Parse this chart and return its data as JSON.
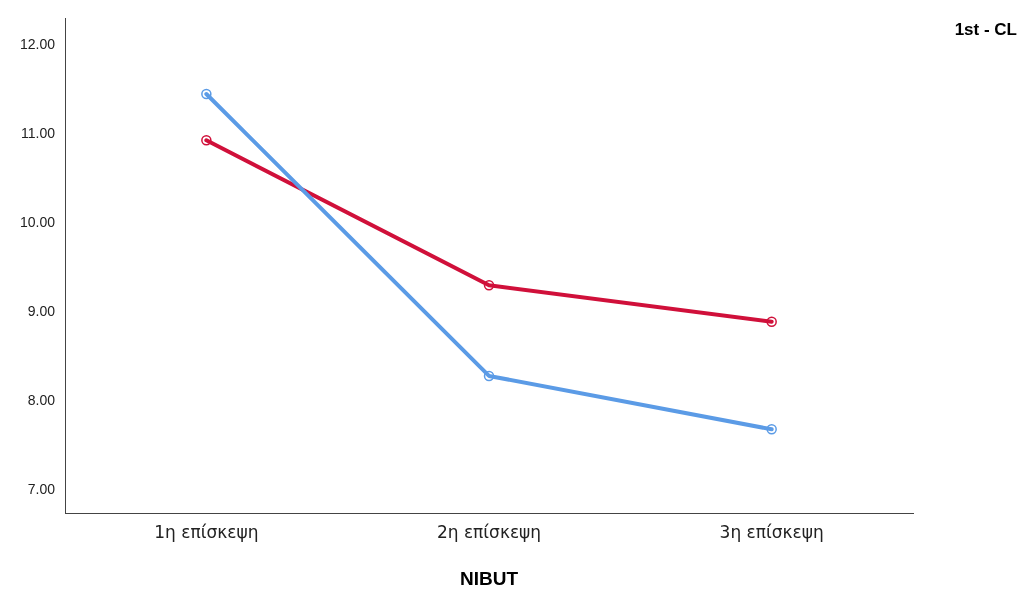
{
  "chart_data": {
    "type": "line",
    "xlabel": "NIBUT",
    "legend_title": "1st - CL",
    "marker": "circle",
    "line_style": "solid",
    "grid": false,
    "categories": [
      "1η επίσκεψη",
      "2η επίσκεψη",
      "3η επίσκεψη"
    ],
    "ylim": [
      6.73,
      12.3
    ],
    "yticks": [
      {
        "value": 7,
        "label": "7.00"
      },
      {
        "value": 8,
        "label": "8.00"
      },
      {
        "value": 9,
        "label": "9.00"
      },
      {
        "value": 10,
        "label": "10.00"
      },
      {
        "value": 11,
        "label": "11.00"
      },
      {
        "value": 12,
        "label": "12.00"
      }
    ],
    "series": [
      {
        "color": "#5b9be6",
        "values": [
          11.45,
          8.28,
          7.68
        ]
      },
      {
        "color": "#d0103a",
        "values": [
          10.93,
          9.3,
          8.89
        ]
      }
    ]
  }
}
